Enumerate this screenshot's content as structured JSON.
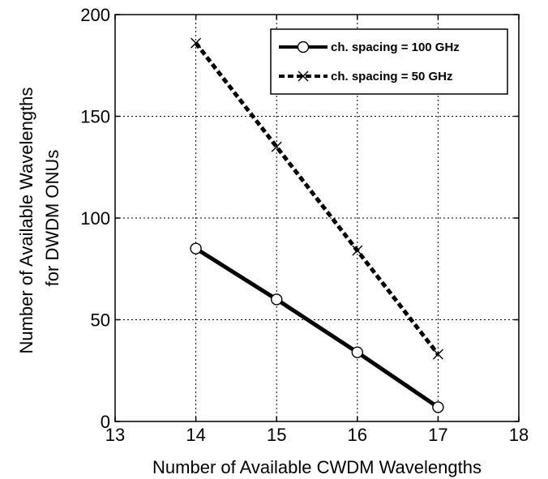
{
  "chart_data": {
    "type": "line",
    "title": "",
    "xlabel": "Number of Available CWDM Wavelengths",
    "ylabel_lines": [
      "Number of Available Wavelengths",
      "for DWDM ONUs"
    ],
    "xlim": [
      13,
      18
    ],
    "ylim": [
      0,
      200
    ],
    "xticks": [
      13,
      14,
      15,
      16,
      17,
      18
    ],
    "yticks": [
      0,
      50,
      100,
      150,
      200
    ],
    "grid": true,
    "legend_position": "top-right",
    "series": [
      {
        "name": "ch. spacing = 100 GHz",
        "x": [
          14,
          15,
          16,
          17
        ],
        "y": [
          85,
          60,
          34,
          7
        ],
        "marker": "circle",
        "line_style": "solid",
        "color": "#000000"
      },
      {
        "name": "ch. spacing = 50 GHz",
        "x": [
          14,
          15,
          16,
          17
        ],
        "y": [
          186,
          135,
          84,
          33
        ],
        "marker": "x",
        "line_style": "dashed",
        "color": "#000000"
      }
    ]
  }
}
